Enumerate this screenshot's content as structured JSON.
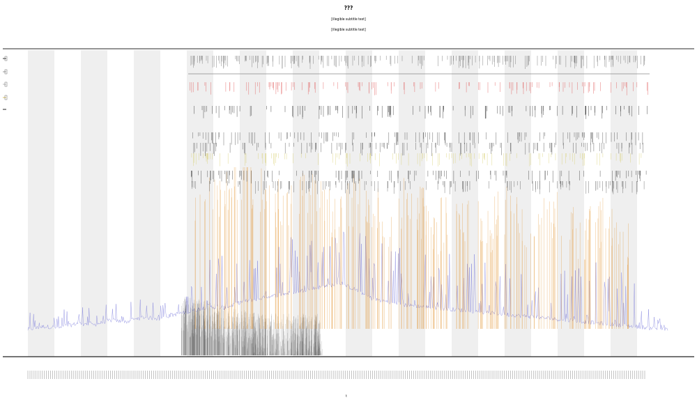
{
  "title": "???",
  "subtitle_1": "[illegible subtitle text]",
  "subtitle_2": "[illegible subtitle text]",
  "xlabel": "t",
  "chart_data": {
    "type": "line",
    "x_count": 920,
    "grid": false,
    "legend_position": "top-left",
    "background_bands": true,
    "series": [
      {
        "color": "#6f6fd8",
        "values": [
          10,
          12,
          11,
          14,
          13,
          16,
          15,
          18,
          17,
          20,
          22,
          25,
          24,
          28,
          30,
          32,
          34,
          36,
          38,
          40,
          36,
          30,
          28,
          26,
          25,
          24,
          23,
          22,
          21,
          20,
          19,
          18,
          17,
          16,
          15,
          14,
          13,
          12,
          11,
          10
        ]
      },
      {
        "color": "#000000",
        "values": [
          0,
          0,
          0,
          2,
          6,
          10,
          14,
          18,
          16,
          12,
          8,
          6,
          4,
          2,
          0,
          0,
          0,
          0,
          0,
          0,
          0,
          0,
          0,
          0,
          0,
          0,
          0,
          0,
          0,
          0,
          0,
          0,
          0,
          0,
          0,
          0,
          0,
          0,
          0,
          0
        ]
      },
      {
        "color": "#e08a1e",
        "values": [
          0,
          0,
          0,
          0,
          0,
          0,
          40,
          55,
          50,
          60,
          48,
          65,
          58,
          70,
          62,
          55,
          48,
          60,
          52,
          45,
          58,
          50,
          42,
          55,
          48,
          40,
          52,
          45,
          38,
          50,
          42,
          36,
          48,
          40,
          34,
          45,
          38,
          30,
          40,
          32
        ]
      }
    ]
  }
}
